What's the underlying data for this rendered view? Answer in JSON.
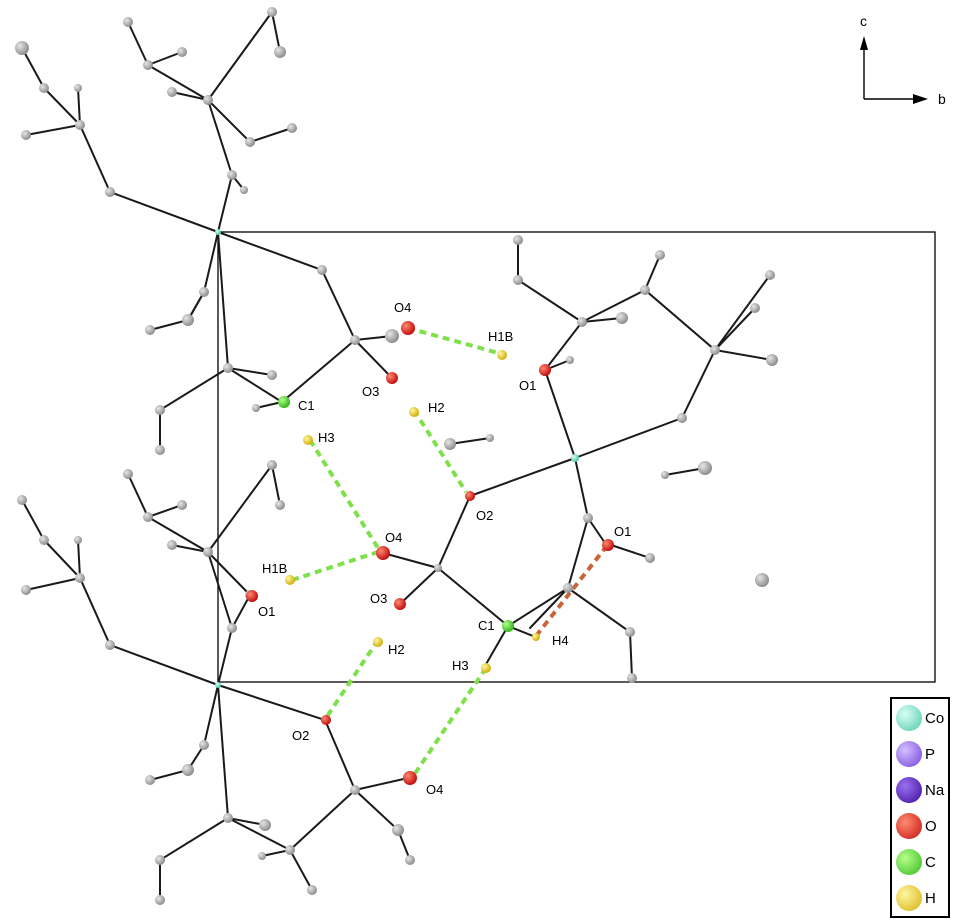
{
  "axes": {
    "vertical_label": "c",
    "horizontal_label": "b"
  },
  "labels": {
    "o4_top": "O4",
    "h1b_top": "H1B",
    "o1_top": "O1",
    "o3_top": "O3",
    "h2_top": "H2",
    "c1_top": "C1",
    "h3_top": "H3",
    "o2_mid": "O2",
    "o1_right": "O1",
    "o4_mid": "O4",
    "h1b_mid": "H1B",
    "o1_left": "O1",
    "o3_mid": "O3",
    "h2_mid": "H2",
    "c1_mid": "C1",
    "h4_mid": "H4",
    "h3_mid": "H3",
    "o2_low": "O2",
    "o4_low": "O4"
  },
  "legend": [
    {
      "label": "Co",
      "color": "#7fe8cf"
    },
    {
      "label": "P",
      "color": "#9a6ee8"
    },
    {
      "label": "Na",
      "color": "#5a1fbf"
    },
    {
      "label": "O",
      "color": "#e8201a"
    },
    {
      "label": "C",
      "color": "#4fdc2a"
    },
    {
      "label": "H",
      "color": "#e8cf1a"
    }
  ],
  "colors": {
    "bond": "#1a1a1a",
    "atom_gray": "#a9a9a9",
    "hbond_green": "#7ee04a",
    "hbond_orange": "#c8643a"
  }
}
